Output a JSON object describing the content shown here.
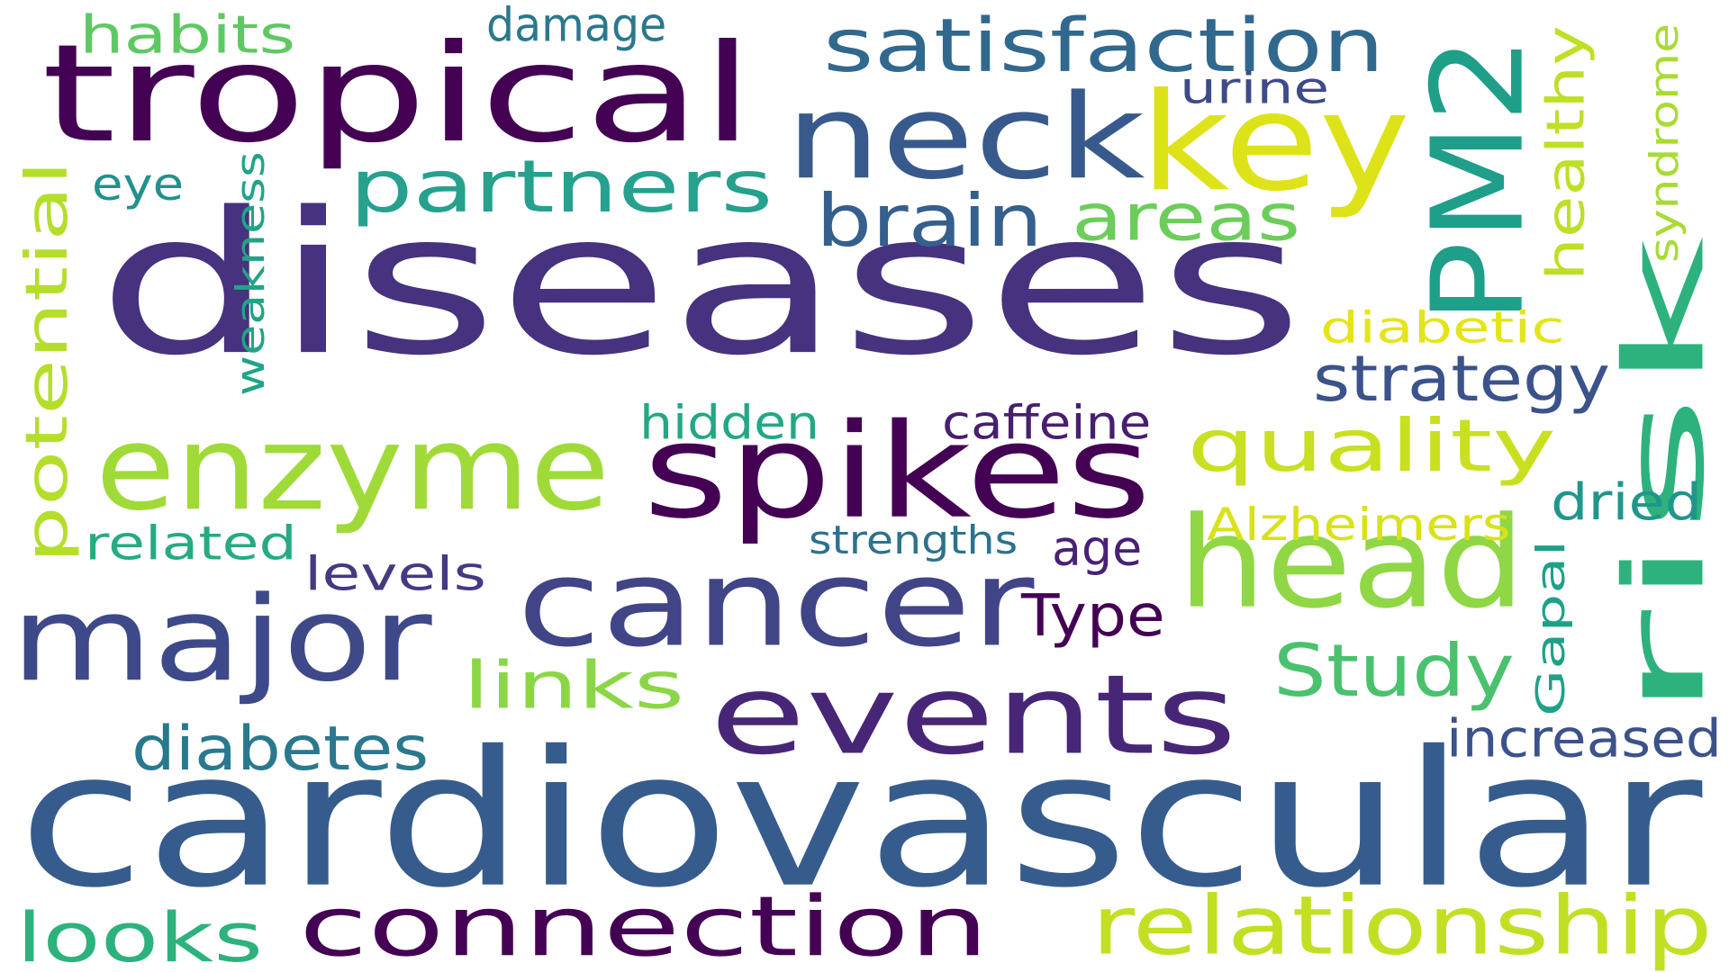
{
  "words": [
    {
      "text": "diseases",
      "color": "#46327e",
      "vertical": false
    },
    {
      "text": "cardiovascular",
      "color": "#365c8d",
      "vertical": false
    },
    {
      "text": "risk",
      "color": "#2db27d",
      "vertical": true
    },
    {
      "text": "tropical",
      "color": "#440154",
      "vertical": false
    },
    {
      "text": "spikes",
      "color": "#440154",
      "vertical": false
    },
    {
      "text": "enzyme",
      "color": "#a0da39",
      "vertical": false
    },
    {
      "text": "head",
      "color": "#8fd744",
      "vertical": false
    },
    {
      "text": "neck",
      "color": "#38598c",
      "vertical": false
    },
    {
      "text": "key",
      "color": "#dde318",
      "vertical": false
    },
    {
      "text": "PM2",
      "color": "#1f9e89",
      "vertical": true
    },
    {
      "text": "events",
      "color": "#482677",
      "vertical": false
    },
    {
      "text": "cancer",
      "color": "#414487",
      "vertical": false
    },
    {
      "text": "major",
      "color": "#3e4989",
      "vertical": false
    },
    {
      "text": "connection",
      "color": "#440154",
      "vertical": false
    },
    {
      "text": "relationship",
      "color": "#c2df23",
      "vertical": false
    },
    {
      "text": "satisfaction",
      "color": "#31688e",
      "vertical": false
    },
    {
      "text": "partners",
      "color": "#25a18e",
      "vertical": false
    },
    {
      "text": "quality",
      "color": "#c8e020",
      "vertical": false
    },
    {
      "text": "looks",
      "color": "#2db27d",
      "vertical": false
    },
    {
      "text": "potential",
      "color": "#b5de2b",
      "vertical": true
    },
    {
      "text": "brain",
      "color": "#355f8d",
      "vertical": false
    },
    {
      "text": "areas",
      "color": "#6ccd5a",
      "vertical": false
    },
    {
      "text": "strategy",
      "color": "#3b528b",
      "vertical": false
    },
    {
      "text": "Study",
      "color": "#4ac16d",
      "vertical": false
    },
    {
      "text": "links",
      "color": "#8bd646",
      "vertical": false
    },
    {
      "text": "diabetes",
      "color": "#2a788e",
      "vertical": false
    },
    {
      "text": "increased",
      "color": "#3b528b",
      "vertical": false
    },
    {
      "text": "healthy",
      "color": "#bddf26",
      "vertical": true
    },
    {
      "text": "habits",
      "color": "#5ec962",
      "vertical": false
    },
    {
      "text": "weakness",
      "color": "#20a486",
      "vertical": true
    },
    {
      "text": "caffeine",
      "color": "#481f70",
      "vertical": false
    },
    {
      "text": "Type",
      "color": "#440154",
      "vertical": false
    },
    {
      "text": "syndrome",
      "color": "#a8db34",
      "vertical": true
    },
    {
      "text": "hidden",
      "color": "#22a884",
      "vertical": false
    },
    {
      "text": "diabetic",
      "color": "#e5e419",
      "vertical": false
    },
    {
      "text": "Alzheimers",
      "color": "#d8e219",
      "vertical": false
    },
    {
      "text": "dried",
      "color": "#1f968b",
      "vertical": false
    },
    {
      "text": "related",
      "color": "#25ab82",
      "vertical": false
    },
    {
      "text": "levels",
      "color": "#443a83",
      "vertical": false
    },
    {
      "text": "age",
      "color": "#482173",
      "vertical": false
    },
    {
      "text": "Gapal",
      "color": "#1fa188",
      "vertical": true
    },
    {
      "text": "urine",
      "color": "#3e4a89",
      "vertical": false
    },
    {
      "text": "eye",
      "color": "#21918c",
      "vertical": false
    },
    {
      "text": "damage",
      "color": "#2a788e",
      "vertical": false
    },
    {
      "text": "strengths",
      "color": "#2c728e",
      "vertical": false
    }
  ]
}
